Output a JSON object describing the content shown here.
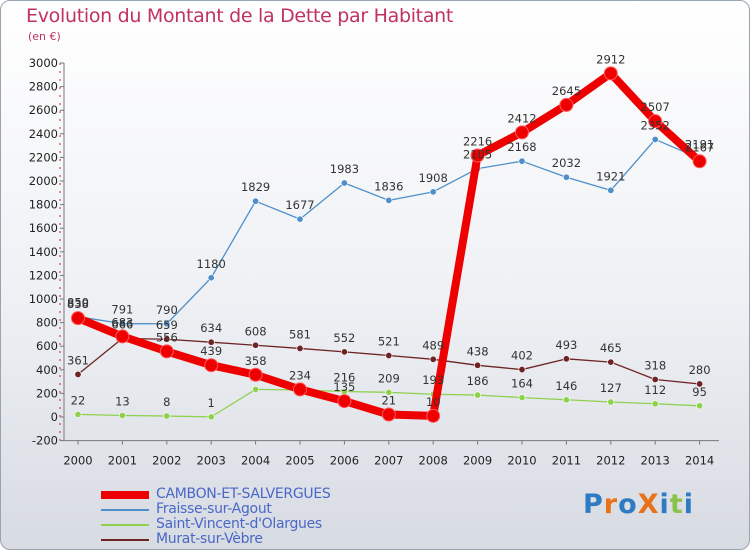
{
  "title": "Evolution du Montant de la Dette par Habitant",
  "subtitle": "(en €)",
  "brand": {
    "text": "ProXiti",
    "letter_colors": [
      "#2e7bc4",
      "#e8711a",
      "#2e7bc4",
      "#e8711a",
      "#2e7bc4",
      "#8bc34a",
      "#2e7bc4"
    ]
  },
  "chart_data": {
    "type": "line",
    "title": "Evolution du Montant de la Dette par Habitant",
    "subtitle": "(en €)",
    "xlabel": "",
    "ylabel": "",
    "x": [
      "2000",
      "2001",
      "2002",
      "2003",
      "2004",
      "2005",
      "2006",
      "2007",
      "2008",
      "2009",
      "2010",
      "2011",
      "2012",
      "2013",
      "2014"
    ],
    "ylim": [
      -200,
      3000
    ],
    "yticks": [
      -200,
      0,
      200,
      400,
      600,
      800,
      1000,
      1200,
      1400,
      1600,
      1800,
      2000,
      2200,
      2400,
      2600,
      2800,
      3000
    ],
    "grid": false,
    "legend_position": "bottom-left",
    "series": [
      {
        "name": "CAMBON-ET-SALVERGUES",
        "color": "#ee0000",
        "highlight": true,
        "values": [
          838,
          683,
          556,
          439,
          358,
          234,
          135,
          21,
          10,
          2216,
          2412,
          2645,
          2912,
          2507,
          2167
        ],
        "labels": [
          "838",
          "683",
          "556",
          "439",
          "358",
          "234",
          "135",
          "21",
          "10",
          "2216",
          "2412",
          "2645",
          "2912",
          "2507",
          "2167"
        ]
      },
      {
        "name": "Fraisse-sur-Agout",
        "color": "#4f8fc9",
        "values": [
          850,
          791,
          790,
          1180,
          1829,
          1677,
          1983,
          1836,
          1908,
          2105,
          2168,
          2032,
          1921,
          2352,
          2191
        ],
        "labels": [
          "850",
          "791",
          "790",
          "1180",
          "1829",
          "1677",
          "1983",
          "1836",
          "1908",
          "2105",
          "2168",
          "2032",
          "1921",
          "2352",
          "2191"
        ]
      },
      {
        "name": "Saint-Vincent-d'Olargues",
        "color": "#8fd14f",
        "values": [
          22,
          13,
          8,
          1,
          234,
          229,
          216,
          209,
          193,
          186,
          164,
          146,
          127,
          112,
          95
        ],
        "labels": [
          "22",
          "13",
          "8",
          "1",
          "",
          "",
          "216",
          "209",
          "193",
          "186",
          "164",
          "146",
          "127",
          "112",
          "95"
        ]
      },
      {
        "name": "Murat-sur-Vèbre",
        "color": "#6e2424",
        "values": [
          361,
          666,
          659,
          634,
          608,
          581,
          552,
          521,
          489,
          438,
          402,
          493,
          465,
          318,
          280
        ],
        "labels": [
          "361",
          "666",
          "659",
          "634",
          "608",
          "581",
          "552",
          "521",
          "489",
          "438",
          "402",
          "493",
          "465",
          "318",
          "280"
        ]
      }
    ]
  }
}
